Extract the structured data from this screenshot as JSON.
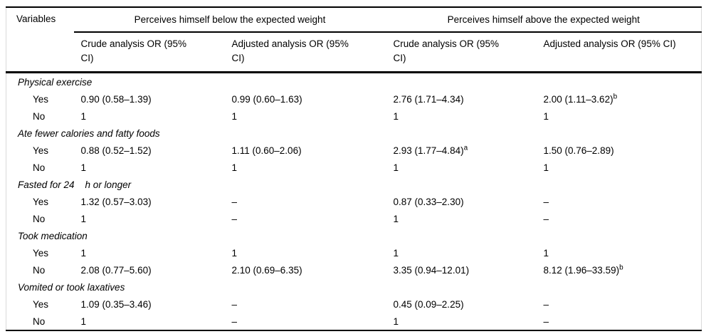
{
  "table": {
    "header": {
      "variables_label": "Variables",
      "group_headers": [
        "Perceives himself below the expected weight",
        "Perceives himself above the expected weight"
      ],
      "sub_headers": [
        "Crude analysis OR (95% CI)",
        "Adjusted analysis OR (95% CI)",
        "Crude analysis OR (95% CI)",
        "Adjusted analysis OR (95% CI)"
      ]
    },
    "sections": [
      {
        "label": "Physical exercise",
        "rows": [
          {
            "label": "Yes",
            "cells": [
              {
                "text": "0.90 (0.58–1.39)"
              },
              {
                "text": "0.99 (0.60–1.63)"
              },
              {
                "text": "2.76 (1.71–4.34)"
              },
              {
                "text": "2.00 (1.11–3.62)",
                "sup": "b"
              }
            ]
          },
          {
            "label": "No",
            "cells": [
              {
                "text": "1"
              },
              {
                "text": "1"
              },
              {
                "text": "1"
              },
              {
                "text": "1"
              }
            ]
          }
        ]
      },
      {
        "label": "Ate fewer calories and fatty foods",
        "rows": [
          {
            "label": "Yes",
            "cells": [
              {
                "text": "0.88 (0.52–1.52)"
              },
              {
                "text": "1.11 (0.60–2.06)"
              },
              {
                "text": "2.93 (1.77–4.84)",
                "sup": "a"
              },
              {
                "text": "1.50 (0.76–2.89)"
              }
            ]
          },
          {
            "label": "No",
            "cells": [
              {
                "text": "1"
              },
              {
                "text": "1"
              },
              {
                "text": "1"
              },
              {
                "text": "1"
              }
            ]
          }
        ]
      },
      {
        "label": "Fasted for 24    h or longer",
        "rows": [
          {
            "label": "Yes",
            "cells": [
              {
                "text": "1.32 (0.57–3.03)"
              },
              {
                "text": "–"
              },
              {
                "text": "0.87 (0.33–2.30)"
              },
              {
                "text": "–"
              }
            ]
          },
          {
            "label": "No",
            "cells": [
              {
                "text": "1"
              },
              {
                "text": "–"
              },
              {
                "text": "1"
              },
              {
                "text": "–"
              }
            ]
          }
        ]
      },
      {
        "label": "Took medication",
        "rows": [
          {
            "label": "Yes",
            "cells": [
              {
                "text": "1"
              },
              {
                "text": "1"
              },
              {
                "text": "1"
              },
              {
                "text": "1"
              }
            ]
          },
          {
            "label": "No",
            "cells": [
              {
                "text": "2.08 (0.77–5.60)"
              },
              {
                "text": "2.10 (0.69–6.35)"
              },
              {
                "text": "3.35 (0.94–12.01)"
              },
              {
                "text": "8.12 (1.96–33.59)",
                "sup": "b"
              }
            ]
          }
        ]
      },
      {
        "label": "Vomited or took laxatives",
        "rows": [
          {
            "label": "Yes",
            "cells": [
              {
                "text": "1.09 (0.35–3.46)"
              },
              {
                "text": "–"
              },
              {
                "text": "0.45 (0.09–2.25)"
              },
              {
                "text": "–"
              }
            ]
          },
          {
            "label": "No",
            "cells": [
              {
                "text": "1"
              },
              {
                "text": "–"
              },
              {
                "text": "1"
              },
              {
                "text": "–"
              }
            ]
          }
        ]
      }
    ]
  }
}
